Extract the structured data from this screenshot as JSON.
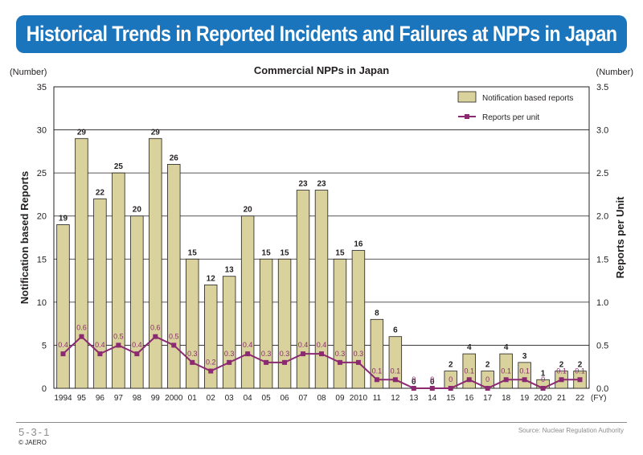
{
  "header": {
    "title": "Historical Trends in Reported Incidents and Failures at NPPs in Japan"
  },
  "chart_data": {
    "type": "bar",
    "title": "Commercial NPPs in Japan",
    "xlabel": "(FY)",
    "ylabel_left": "Notification based Reports",
    "ylabel_right": "Reports per Unit",
    "unit_left": "(Number)",
    "unit_right": "(Number)",
    "categories": [
      "1994",
      "95",
      "96",
      "97",
      "98",
      "99",
      "2000",
      "01",
      "02",
      "03",
      "04",
      "05",
      "06",
      "07",
      "08",
      "09",
      "2010",
      "11",
      "12",
      "13",
      "14",
      "15",
      "16",
      "17",
      "18",
      "19",
      "2020",
      "21",
      "22"
    ],
    "y_left_lim": [
      0,
      35
    ],
    "y_left_ticks": [
      "0",
      "5",
      "10",
      "15",
      "20",
      "25",
      "30",
      "35"
    ],
    "y_right_lim": [
      0,
      3.5
    ],
    "y_right_ticks": [
      "0.0",
      "0.5",
      "1.0",
      "1.5",
      "2.0",
      "2.5",
      "3.0",
      "3.5"
    ],
    "grid": true,
    "legend_position": "top-right",
    "series": [
      {
        "name": "Notification based reports",
        "type": "bar",
        "axis": "left",
        "color": "#d9d29c",
        "values": [
          19,
          29,
          22,
          25,
          20,
          29,
          26,
          15,
          12,
          13,
          20,
          15,
          15,
          23,
          23,
          15,
          16,
          8,
          6,
          0,
          0,
          2,
          4,
          2,
          4,
          3,
          1,
          2,
          2
        ],
        "labels": [
          "19",
          "29",
          "22",
          "25",
          "20",
          "29",
          "26",
          "15",
          "12",
          "13",
          "20",
          "15",
          "15",
          "23",
          "23",
          "15",
          "16",
          "8",
          "6",
          "0",
          "0",
          "2",
          "4",
          "2",
          "4",
          "3",
          "1",
          "2",
          "2"
        ]
      },
      {
        "name": "Reports per unit",
        "type": "line",
        "axis": "right",
        "color": "#8b2a71",
        "values": [
          0.4,
          0.6,
          0.4,
          0.5,
          0.4,
          0.6,
          0.5,
          0.3,
          0.2,
          0.3,
          0.4,
          0.3,
          0.3,
          0.4,
          0.4,
          0.3,
          0.3,
          0.1,
          0.1,
          0,
          0,
          0,
          0.1,
          0,
          0.1,
          0.1,
          0,
          0.1,
          0.1
        ],
        "labels": [
          "0.4",
          "0.6",
          "0.4",
          "0.5",
          "0.4",
          "0.6",
          "0.5",
          "0.3",
          "0.2",
          "0.3",
          "0.4",
          "0.3",
          "0.3",
          "0.4",
          "0.4",
          "0.3",
          "0.3",
          "0.1",
          "0.1",
          "0",
          "0",
          "0",
          "0.1",
          "0",
          "0.1",
          "0.1",
          "0",
          "0.1",
          "0.1"
        ]
      }
    ]
  },
  "footer": {
    "page_code": "5-3-1",
    "copyright": "© JAERO",
    "source": "Source: Nuclear Regulation Authority"
  }
}
